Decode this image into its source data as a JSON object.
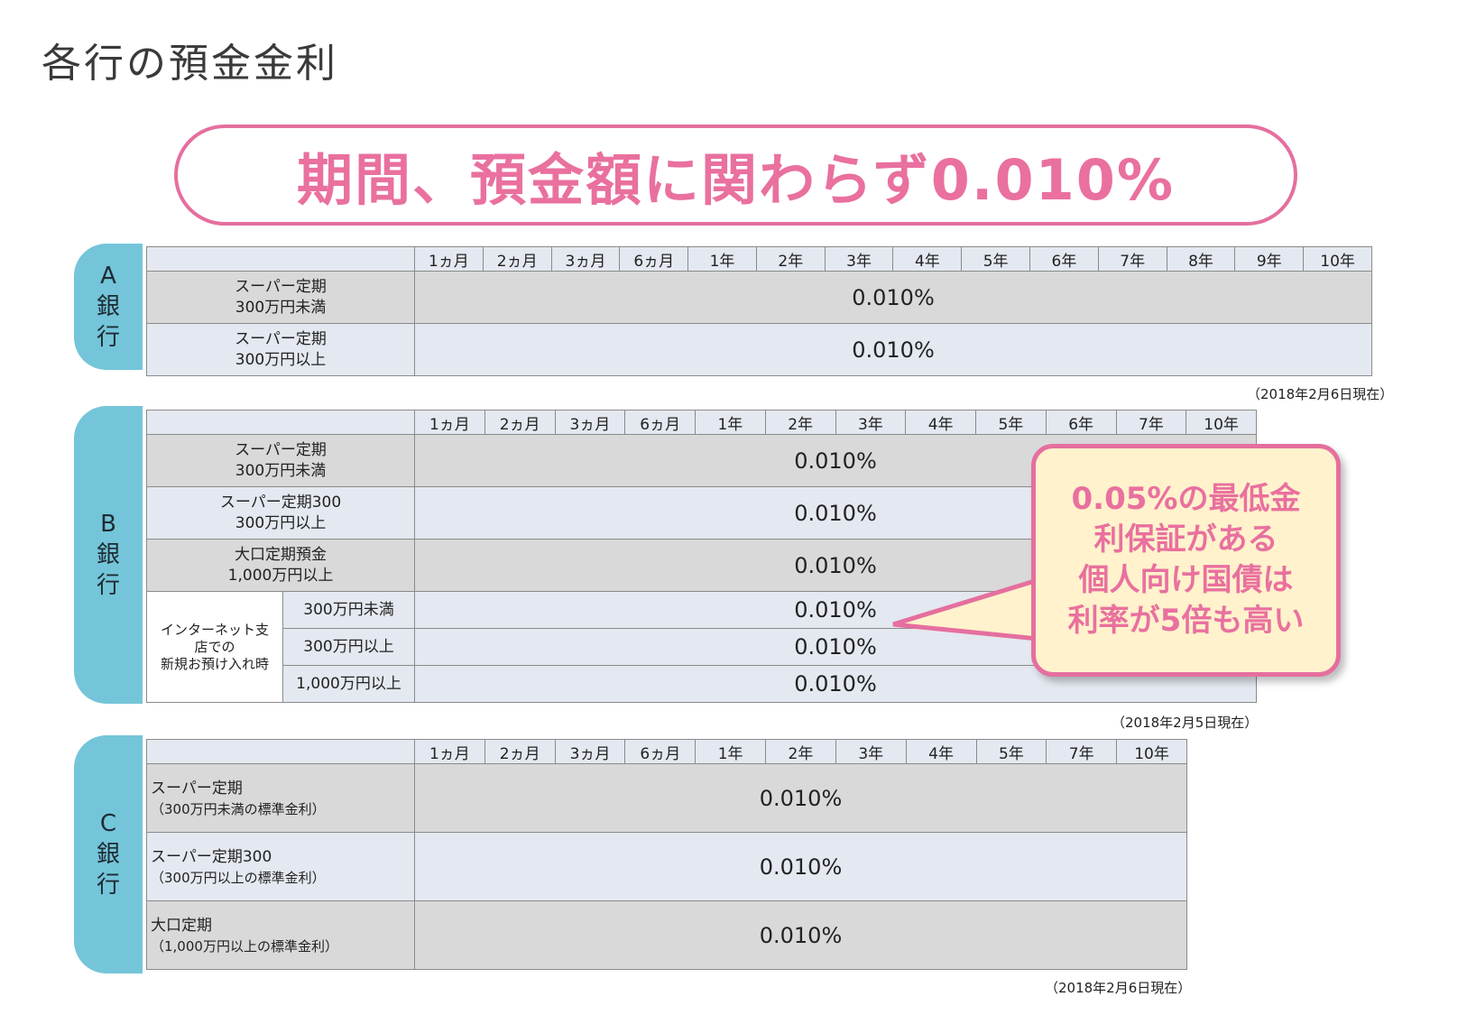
{
  "page_title": "各行の預金金利",
  "banner": "期間、預金額に関わらず0.010%",
  "bank_a": {
    "label": "A\n銀\n行",
    "periods": [
      "1ヵ月",
      "2ヵ月",
      "3ヵ月",
      "6ヵ月",
      "1年",
      "2年",
      "3年",
      "4年",
      "5年",
      "6年",
      "7年",
      "8年",
      "9年",
      "10年"
    ],
    "rows": [
      {
        "product": "スーパー定期\n300万円未満",
        "rate": "0.010%"
      },
      {
        "product": "スーパー定期\n300万円以上",
        "rate": "0.010%"
      }
    ],
    "as_of": "（2018年2月6日現在）"
  },
  "bank_b": {
    "label": "B\n銀\n行",
    "periods": [
      "1ヵ月",
      "2ヵ月",
      "3ヵ月",
      "6ヵ月",
      "1年",
      "2年",
      "3年",
      "4年",
      "5年",
      "6年",
      "7年",
      "10年"
    ],
    "rows": [
      {
        "product": "スーパー定期\n300万円未満",
        "rate": "0.010%"
      },
      {
        "product": "スーパー定期300\n300万円以上",
        "rate": "0.010%"
      },
      {
        "product": "大口定期預金\n1,000万円以上",
        "rate": "0.010%"
      }
    ],
    "internet_group": "インターネット支\n店での\n新規お預け入れ時",
    "internet_rows": [
      {
        "product": "300万円未満",
        "rate": "0.010%"
      },
      {
        "product": "300万円以上",
        "rate": "0.010%"
      },
      {
        "product": "1,000万円以上",
        "rate": "0.010%"
      }
    ],
    "as_of": "（2018年2月5日現在）"
  },
  "bank_c": {
    "label": "C\n銀\n行",
    "periods": [
      "1ヵ月",
      "2ヵ月",
      "3ヵ月",
      "6ヵ月",
      "1年",
      "2年",
      "3年",
      "4年",
      "5年",
      "7年",
      "10年"
    ],
    "rows": [
      {
        "product": "スーパー定期",
        "sub": "（300万円未満の標準金利）",
        "rate": "0.010%"
      },
      {
        "product": "スーパー定期300",
        "sub": "（300万円以上の標準金利）",
        "rate": "0.010%"
      },
      {
        "product": "大口定期",
        "sub": "（1,000万円以上の標準金利）",
        "rate": "0.010%"
      }
    ],
    "as_of": "（2018年2月6日現在）"
  },
  "callout": "0.05%の最低金\n利保証がある\n個人向け国債は\n利率が5倍も高い",
  "colors": {
    "accent_pink": "#e56f9f",
    "bank_tab": "#74c5d9",
    "callout_bg": "#fff2cc",
    "row_gray": "#d9d9d9",
    "row_light": "#e4e8f0"
  }
}
